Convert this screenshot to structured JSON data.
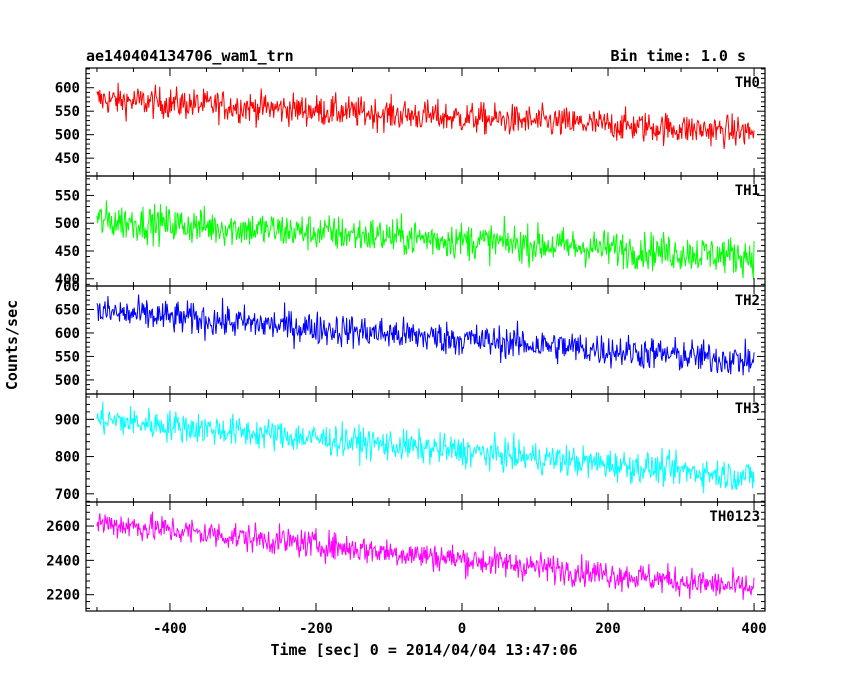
{
  "header": {
    "title": "ae140404134706_wam1_trn",
    "bin_time": "Bin time: 1.0 s"
  },
  "chart_data": {
    "type": "line",
    "xlabel": "Time [sec] 0 = 2014/04/04 13:47:06",
    "ylabel": "Counts/sec",
    "xlim": [
      -515,
      415
    ],
    "xticks": [
      -400,
      -200,
      0,
      200,
      400
    ],
    "bin_time_s": 1.0,
    "panels": [
      {
        "name": "TH0",
        "color": "#ff0000",
        "ylim": [
          412,
          642
        ],
        "yticks": [
          450,
          500,
          550,
          600
        ],
        "trend": {
          "x": [
            -500,
            400
          ],
          "y": [
            575,
            505
          ]
        },
        "noise_amplitude": 30
      },
      {
        "name": "TH1",
        "color": "#00ff00",
        "ylim": [
          387,
          585
        ],
        "yticks": [
          400,
          450,
          500,
          550
        ],
        "trend": {
          "x": [
            -500,
            400
          ],
          "y": [
            505,
            440
          ]
        },
        "noise_amplitude": 30
      },
      {
        "name": "TH2",
        "color": "#0000ff",
        "ylim": [
          470,
          700
        ],
        "yticks": [
          500,
          550,
          600,
          650,
          700
        ],
        "trend": {
          "x": [
            -500,
            400
          ],
          "y": [
            645,
            540
          ]
        },
        "noise_amplitude": 32
      },
      {
        "name": "TH3",
        "color": "#00ffff",
        "ylim": [
          678,
          968
        ],
        "yticks": [
          700,
          800,
          900
        ],
        "trend": {
          "x": [
            -500,
            400
          ],
          "y": [
            900,
            745
          ]
        },
        "noise_amplitude": 38
      },
      {
        "name": "TH0123",
        "color": "#ff00ff",
        "ylim": [
          2105,
          2740
        ],
        "yticks": [
          2200,
          2400,
          2600
        ],
        "trend": {
          "x": [
            -500,
            400
          ],
          "y": [
            2620,
            2235
          ]
        },
        "noise_amplitude": 75
      }
    ]
  }
}
